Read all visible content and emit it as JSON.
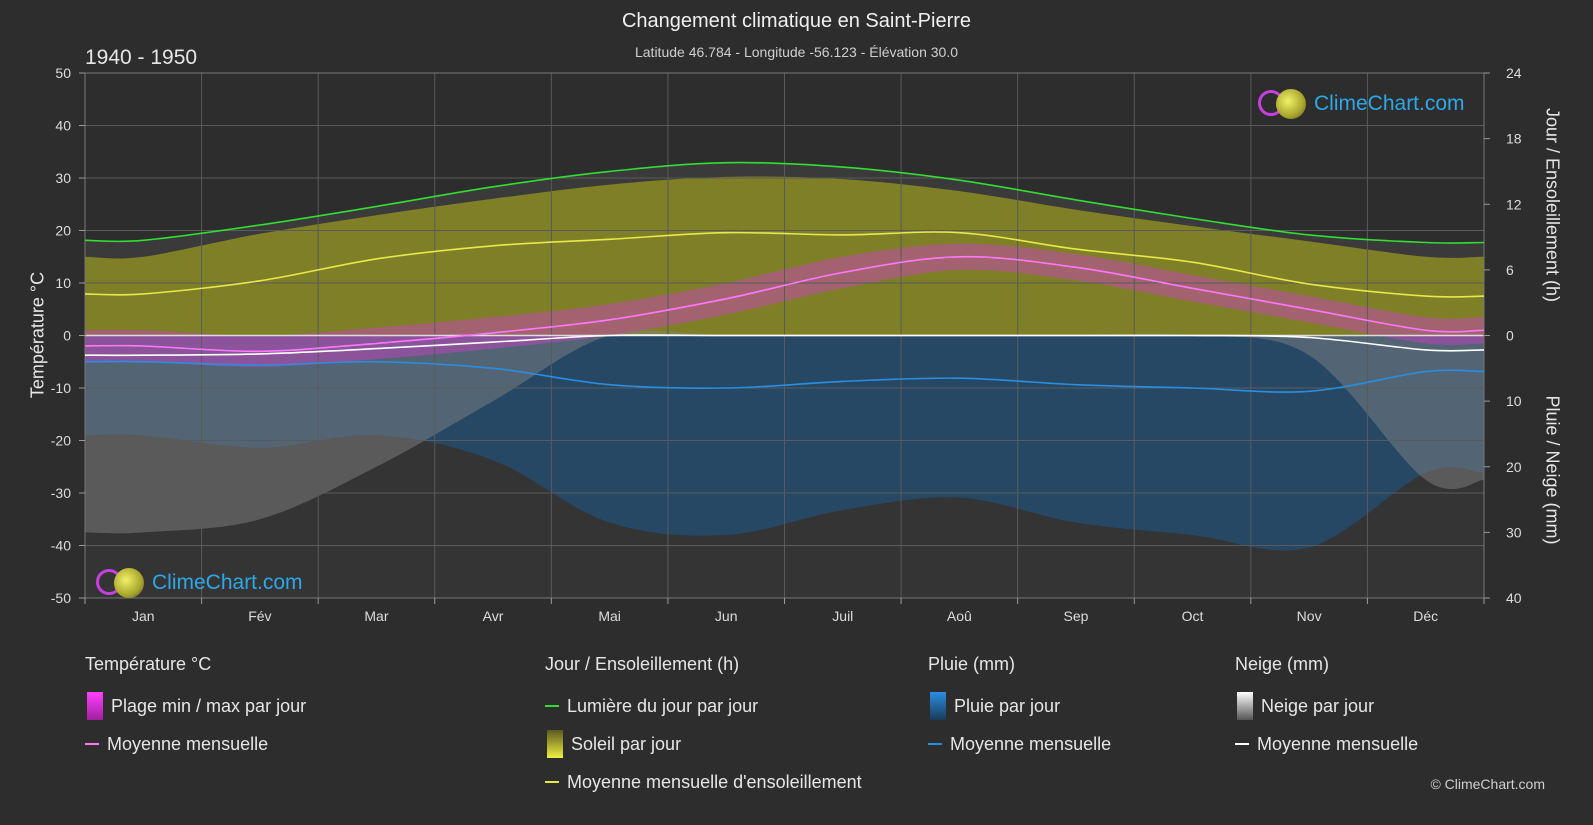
{
  "header": {
    "title": "Changement climatique en Saint-Pierre",
    "subtitle": "Latitude 46.784 - Longitude -56.123 - Élévation 30.0",
    "period": "1940 - 1950"
  },
  "axes": {
    "left_title": "Température °C",
    "right_top_title": "Jour / Ensoleillement (h)",
    "right_bottom_title": "Pluie / Neige (mm)"
  },
  "logo_text": "ClimeChart.com",
  "copyright": "© ClimeChart.com",
  "legend": {
    "temperature": {
      "head": "Température °C",
      "range_label": "Plage min / max par jour",
      "mean_label": "Moyenne mensuelle"
    },
    "sun": {
      "head": "Jour / Ensoleillement (h)",
      "daylight_label": "Lumière du jour par jour",
      "sunshine_label": "Soleil par jour",
      "sunshine_mean_label": "Moyenne mensuelle d'ensoleillement"
    },
    "rain": {
      "head": "Pluie (mm)",
      "day_label": "Pluie par jour",
      "mean_label": "Moyenne mensuelle"
    },
    "snow": {
      "head": "Neige (mm)",
      "day_label": "Neige par jour",
      "mean_label": "Moyenne mensuelle"
    }
  },
  "colors": {
    "background": "#2d2d2d",
    "grid": "#5a5a5a",
    "daylight": "#33dd33",
    "sunshine_mean": "#e8e84a",
    "sunshine_fill": "#8c8c26",
    "temp_mean": "#ff77ff",
    "temp_range": "#d040c8",
    "rain_mean": "#2a8ee0",
    "rain_fill": "#1d5a8c",
    "snow_mean": "#ffffff",
    "snow_fill": "#8a8a8a",
    "logo_text": "#2ea7e8"
  },
  "chart_data": {
    "type": "line",
    "categories": [
      "Jan",
      "Fév",
      "Mar",
      "Avr",
      "Mai",
      "Jun",
      "Juil",
      "Aoû",
      "Sep",
      "Oct",
      "Nov",
      "Déc"
    ],
    "y_left": {
      "label": "Température °C",
      "range": [
        -50,
        50
      ],
      "ticks": [
        50,
        40,
        30,
        20,
        10,
        0,
        -10,
        -20,
        -30,
        -40,
        -50
      ]
    },
    "y_right_top": {
      "label": "Jour / Ensoleillement (h)",
      "range": [
        0,
        24
      ],
      "ticks": [
        24,
        18,
        12,
        6,
        0
      ]
    },
    "y_right_bottom": {
      "label": "Pluie / Neige (mm)",
      "range": [
        0,
        40
      ],
      "ticks": [
        0,
        10,
        20,
        30,
        40
      ]
    },
    "grid": true,
    "series": [
      {
        "name": "Lumière du jour par jour",
        "axis": "hours",
        "values": [
          8.7,
          10.1,
          11.8,
          13.6,
          15.0,
          15.8,
          15.4,
          14.2,
          12.4,
          10.7,
          9.2,
          8.5
        ]
      },
      {
        "name": "Moyenne mensuelle d'ensoleillement",
        "axis": "hours",
        "values": [
          3.8,
          5.0,
          7.0,
          8.2,
          8.8,
          9.4,
          9.2,
          9.4,
          7.9,
          6.7,
          4.7,
          3.6
        ]
      },
      {
        "name": "Soleil par jour",
        "axis": "hours",
        "values": [
          7.2,
          9.3,
          11.0,
          12.5,
          13.8,
          14.5,
          14.3,
          13.2,
          11.5,
          10.0,
          8.6,
          7.2
        ]
      },
      {
        "name": "Moyenne mensuelle",
        "group": "Température °C",
        "axis": "temperature",
        "values": [
          -2.0,
          -3.0,
          -1.5,
          0.5,
          3.0,
          7.0,
          12.0,
          15.0,
          13.0,
          9.0,
          5.0,
          1.0
        ]
      },
      {
        "name": "Plage min / max par jour (max)",
        "axis": "temperature",
        "values": [
          1.0,
          0.0,
          1.5,
          3.5,
          6.0,
          10.0,
          15.0,
          17.5,
          15.5,
          11.5,
          7.5,
          3.5
        ]
      },
      {
        "name": "Plage min / max par jour (min)",
        "axis": "temperature",
        "values": [
          -5.0,
          -6.0,
          -4.5,
          -2.5,
          0.0,
          4.0,
          9.0,
          12.5,
          10.5,
          6.5,
          2.5,
          -1.5
        ]
      },
      {
        "name": "Moyenne mensuelle",
        "group": "Pluie (mm)",
        "axis": "precip",
        "values": [
          4.0,
          4.5,
          4.0,
          5.0,
          7.5,
          8.0,
          7.0,
          6.5,
          7.5,
          8.0,
          8.5,
          5.5
        ]
      },
      {
        "name": "Moyenne mensuelle",
        "group": "Neige (mm)",
        "axis": "precip",
        "values": [
          3.0,
          2.8,
          2.0,
          1.0,
          0.0,
          0.0,
          0.0,
          0.0,
          0.0,
          0.0,
          0.3,
          2.2
        ]
      }
    ]
  }
}
